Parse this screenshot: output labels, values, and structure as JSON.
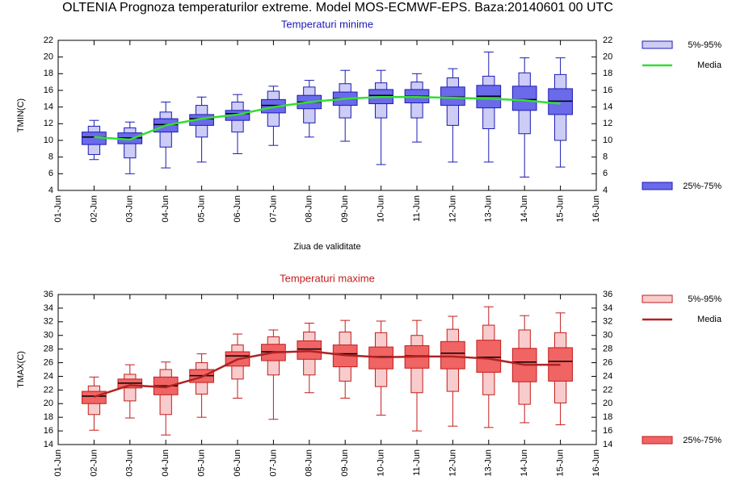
{
  "title": "OLTENIA  Prognoza temperaturilor extreme.  Model MOS-ECMWF-EPS. Baza:20140601 00 UTC",
  "chart_data": [
    {
      "type": "box",
      "title": "Temperaturi minime",
      "title_color": "#1c1cb4",
      "ylabel": "TMIN(C)",
      "xlabel": "Ziua de validitate",
      "categories": [
        "01-Jun",
        "02-Jun",
        "03-Jun",
        "04-Jun",
        "05-Jun",
        "06-Jun",
        "07-Jun",
        "08-Jun",
        "09-Jun",
        "10-Jun",
        "11-Jun",
        "12-Jun",
        "13-Jun",
        "14-Jun",
        "15-Jun",
        "16-Jun"
      ],
      "ylim": [
        4,
        22
      ],
      "yticks": [
        4,
        6,
        8,
        10,
        12,
        14,
        16,
        18,
        20,
        22
      ],
      "series": [
        {
          "name": "5%-95%",
          "color": "#ccccf6",
          "edge": "#1c1cb4",
          "whisker_low": [
            null,
            7.7,
            6,
            6.7,
            7.4,
            8.4,
            9.4,
            10.4,
            9.9,
            7.1,
            9.8,
            7.4,
            7.4,
            5.6,
            6.8,
            null
          ],
          "low": [
            null,
            8.3,
            7.9,
            9.2,
            10.4,
            11,
            11.7,
            12.1,
            12.7,
            12.7,
            12.7,
            11.8,
            11.4,
            10.8,
            10,
            null
          ],
          "high": [
            null,
            11.7,
            11.5,
            13.4,
            14.2,
            14.6,
            15.9,
            16.4,
            16.8,
            16.9,
            17,
            17.5,
            17.7,
            18.1,
            17.9,
            null
          ],
          "whisker_high": [
            null,
            12.4,
            12.2,
            14.6,
            15.2,
            15.5,
            16.5,
            17.2,
            18.4,
            18.4,
            18,
            18.6,
            20.6,
            19.9,
            19.9,
            null
          ]
        },
        {
          "name": "Media",
          "color": "#33dd33",
          "values": [
            null,
            10.4,
            10.1,
            11.8,
            12.6,
            13.1,
            14,
            14.6,
            15,
            15.2,
            15.2,
            15.1,
            15,
            14.8,
            14.4,
            null
          ]
        },
        {
          "name": "25%-75%",
          "color": "#6a6aea",
          "edge": "#1c1cb4",
          "median_color": "#000000",
          "q1": [
            null,
            9.5,
            9.6,
            11,
            11.8,
            12.4,
            13.3,
            13.8,
            14.2,
            14.4,
            14.5,
            14.2,
            13.9,
            13.6,
            13.1,
            null
          ],
          "median": [
            null,
            10.4,
            10.3,
            11.9,
            12.6,
            13.2,
            14.2,
            14.6,
            15,
            15.4,
            15.3,
            15.2,
            15.3,
            14.9,
            14.7,
            null
          ],
          "q3": [
            null,
            11,
            10.9,
            12.6,
            13.1,
            13.6,
            14.9,
            15.4,
            15.8,
            16.1,
            16.1,
            16.4,
            16.6,
            16.5,
            16.2,
            null
          ]
        }
      ]
    },
    {
      "type": "box",
      "title": "Temperaturi maxime",
      "title_color": "#c41c1c",
      "ylabel": "TMAX(C)",
      "categories": [
        "01-Jun",
        "02-Jun",
        "03-Jun",
        "04-Jun",
        "05-Jun",
        "06-Jun",
        "07-Jun",
        "08-Jun",
        "09-Jun",
        "10-Jun",
        "11-Jun",
        "12-Jun",
        "13-Jun",
        "14-Jun",
        "15-Jun",
        "16-Jun"
      ],
      "ylim": [
        14,
        36
      ],
      "yticks": [
        14,
        16,
        18,
        20,
        22,
        24,
        26,
        28,
        30,
        32,
        34,
        36
      ],
      "series": [
        {
          "name": "5%-95%",
          "color": "#f8cccc",
          "edge": "#c41c1c",
          "whisker_low": [
            null,
            16.1,
            17.9,
            15.4,
            18,
            20.8,
            17.7,
            21.6,
            20.8,
            18.3,
            16,
            16.7,
            16.5,
            17.2,
            16.9,
            null
          ],
          "low": [
            null,
            18.4,
            20.4,
            18.4,
            21.4,
            23.6,
            24.2,
            24.2,
            23.3,
            22.5,
            21.6,
            21.8,
            21.3,
            19.9,
            20.1,
            null
          ],
          "high": [
            null,
            22.6,
            24.3,
            25,
            26,
            28.6,
            29.8,
            30.5,
            30.5,
            30.4,
            30,
            30.9,
            31.5,
            30.8,
            30.4,
            null
          ],
          "whisker_high": [
            null,
            23.9,
            25.7,
            26.1,
            27.3,
            30.2,
            30.8,
            31.8,
            32.2,
            32.1,
            32.2,
            32.8,
            34.2,
            32.9,
            33.3,
            null
          ]
        },
        {
          "name": "Media",
          "color": "#b02222",
          "values": [
            null,
            21,
            22.7,
            22.4,
            23.9,
            26.5,
            27.5,
            27.7,
            27.1,
            26.8,
            26.9,
            26.9,
            26.6,
            25.7,
            25.7,
            null
          ]
        },
        {
          "name": "25%-75%",
          "color": "#f06464",
          "edge": "#c41c1c",
          "median_color": "#000000",
          "q1": [
            null,
            20,
            22.3,
            21.3,
            23.1,
            25.5,
            26.3,
            26.5,
            25.4,
            25.1,
            25.2,
            25.1,
            24.6,
            23.2,
            23.3,
            null
          ],
          "median": [
            null,
            21.1,
            23,
            22.6,
            24.1,
            27,
            27.6,
            28,
            27.3,
            26.9,
            27,
            27.4,
            26.8,
            26.1,
            26.2,
            null
          ],
          "q3": [
            null,
            21.8,
            23.6,
            23.9,
            25,
            27.6,
            28.7,
            29.2,
            28.6,
            28.3,
            28.5,
            29.1,
            29.3,
            28.1,
            28.2,
            null
          ]
        }
      ]
    }
  ]
}
